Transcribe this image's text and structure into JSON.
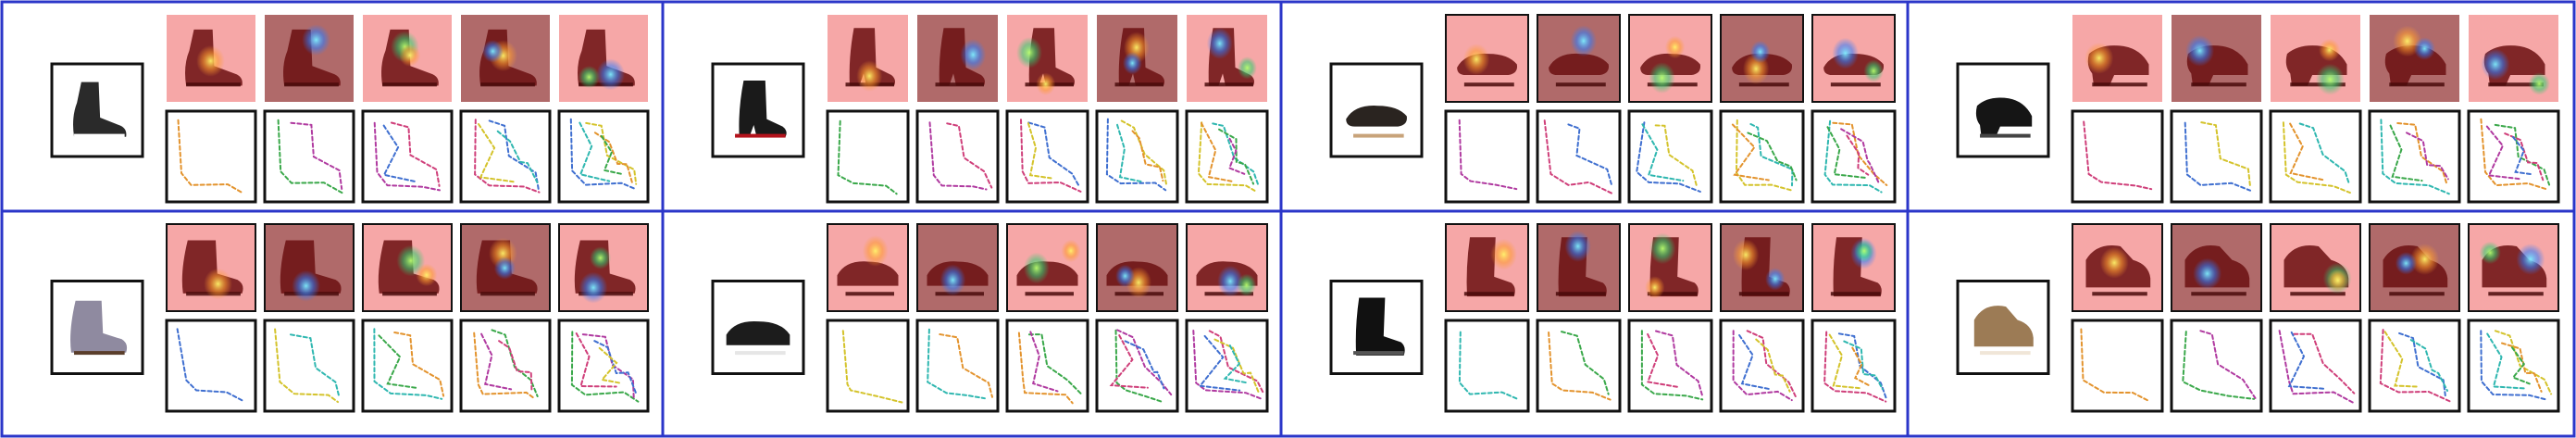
{
  "figure": {
    "caption": "",
    "colors": {
      "frame": "#2b36c9",
      "heatmap_light": "#f6a7a7",
      "heatmap_dark": "#b06a6a",
      "sketch_border": "#111111"
    },
    "rows": 2,
    "columns": 4,
    "attention_steps": 5,
    "panels": [
      {
        "category": "ankle-boot",
        "icon": "ankle-boot-icon",
        "shoe_color": "#2a2a2a",
        "accent": "#ffffff"
      },
      {
        "category": "heeled-ankle-boot",
        "icon": "heeled-boot-icon",
        "shoe_color": "#1a1a1a",
        "accent": "#b3131c"
      },
      {
        "category": "sandal",
        "icon": "sandal-icon",
        "shoe_color": "#2a2420",
        "accent": "#c8a37a"
      },
      {
        "category": "platform-loafer",
        "icon": "platform-shoe-icon",
        "shoe_color": "#151515",
        "accent": "#444444"
      },
      {
        "category": "fringe-boot",
        "icon": "fringe-boot-icon",
        "shoe_color": "#8f8aa0",
        "accent": "#5a3e2b"
      },
      {
        "category": "strap-sandal",
        "icon": "strap-sandal-icon",
        "shoe_color": "#1c1c1c",
        "accent": "#e6e6e6"
      },
      {
        "category": "rain-boot",
        "icon": "rain-boot-icon",
        "shoe_color": "#111111",
        "accent": "#555555"
      },
      {
        "category": "high-top-sneaker",
        "icon": "sneaker-icon",
        "shoe_color": "#9c7b55",
        "accent": "#f0e6d8"
      }
    ]
  }
}
